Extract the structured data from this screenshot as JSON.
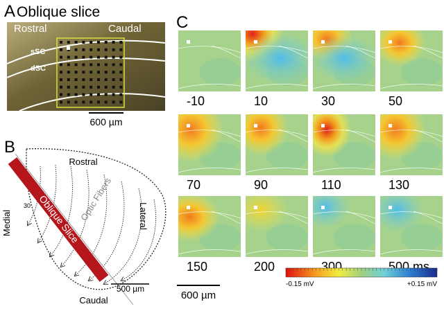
{
  "panel_a": {
    "letter": "A",
    "title": "Oblique slice",
    "rostral": "Rostral",
    "caudal": "Caudal",
    "ssc": "sSC",
    "dsc": "dSC",
    "scale": "600 µm"
  },
  "panel_b": {
    "letter": "B",
    "rostral": "Rostral",
    "caudal": "Caudal",
    "medial": "Medial",
    "lateral": "Lateral",
    "fibers": "Optic Fibers",
    "slice": "Oblique Slice",
    "angle": "30",
    "scale": "500 µm"
  },
  "panel_c": {
    "letter": "C",
    "frame_labels": [
      "-10",
      "10",
      "30",
      "50",
      "70",
      "90",
      "110",
      "130",
      "150",
      "200",
      "300",
      "500 ms"
    ],
    "scale": "600 µm",
    "colorbar_min": "-0.15 mV",
    "colorbar_max": "+0.15 mV"
  }
}
